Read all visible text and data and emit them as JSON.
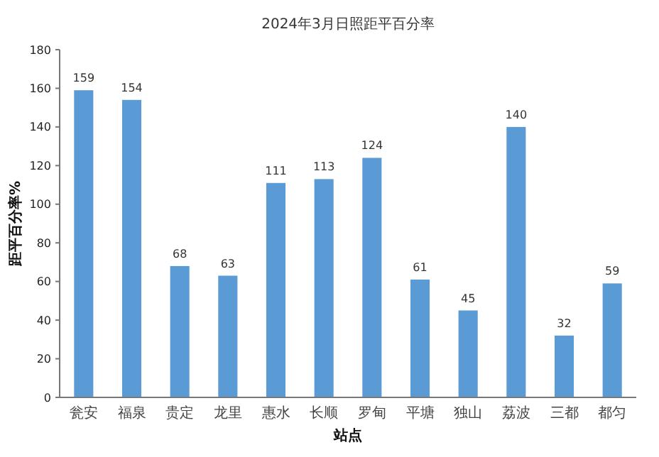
{
  "chart_data": {
    "type": "bar",
    "title": "2024年3月日照距平百分率",
    "xlabel": "站点",
    "ylabel": "距平百分率%",
    "categories": [
      "瓮安",
      "福泉",
      "贵定",
      "龙里",
      "惠水",
      "长顺",
      "罗甸",
      "平塘",
      "独山",
      "荔波",
      "三都",
      "都匀"
    ],
    "values": [
      159,
      154,
      68,
      63,
      111,
      113,
      124,
      61,
      45,
      140,
      32,
      59
    ],
    "color": "#5b9bd5",
    "ylim": [
      0,
      180
    ],
    "yticks": [
      0,
      20,
      40,
      60,
      80,
      100,
      120,
      140,
      160,
      180
    ],
    "grid": false,
    "data_labels": true
  }
}
